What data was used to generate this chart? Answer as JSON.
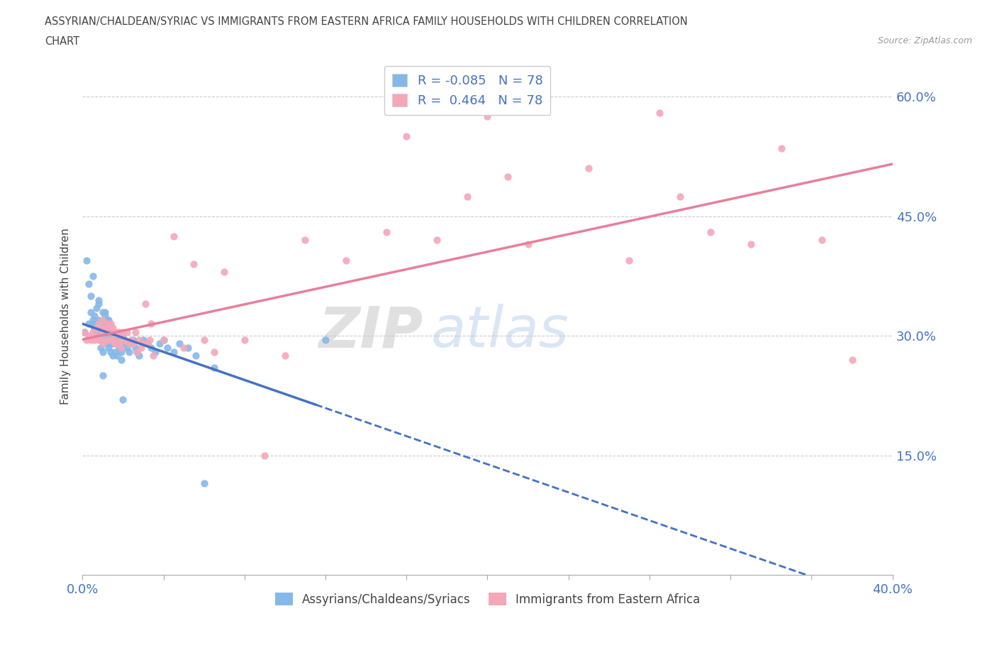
{
  "title_line1": "ASSYRIAN/CHALDEAN/SYRIAC VS IMMIGRANTS FROM EASTERN AFRICA FAMILY HOUSEHOLDS WITH CHILDREN CORRELATION",
  "title_line2": "CHART",
  "source": "Source: ZipAtlas.com",
  "ylabel": "Family Households with Children",
  "x_min": 0.0,
  "x_max": 0.4,
  "y_min": 0.0,
  "y_max": 0.65,
  "x_ticks": [
    0.0,
    0.04,
    0.08,
    0.12,
    0.16,
    0.2,
    0.24,
    0.28,
    0.32,
    0.36,
    0.4
  ],
  "y_ticks": [
    0.0,
    0.15,
    0.3,
    0.45,
    0.6
  ],
  "y_tick_labels": [
    "",
    "15.0%",
    "30.0%",
    "45.0%",
    "60.0%"
  ],
  "R_blue": -0.085,
  "N_blue": 78,
  "R_pink": 0.464,
  "N_pink": 78,
  "color_blue": "#85b8e8",
  "color_pink": "#f4a7b9",
  "tick_label_color": "#4472c4",
  "watermark": "ZIPatlas",
  "legend_label_blue": "Assyrians/Chaldeans/Syriacs",
  "legend_label_pink": "Immigrants from Eastern Africa",
  "blue_scatter_x": [
    0.001,
    0.002,
    0.003,
    0.004,
    0.004,
    0.005,
    0.005,
    0.006,
    0.006,
    0.007,
    0.007,
    0.007,
    0.008,
    0.008,
    0.008,
    0.009,
    0.009,
    0.009,
    0.01,
    0.01,
    0.01,
    0.01,
    0.011,
    0.011,
    0.011,
    0.012,
    0.012,
    0.012,
    0.013,
    0.013,
    0.013,
    0.014,
    0.014,
    0.014,
    0.015,
    0.015,
    0.015,
    0.016,
    0.016,
    0.017,
    0.017,
    0.018,
    0.018,
    0.019,
    0.019,
    0.02,
    0.02,
    0.021,
    0.022,
    0.023,
    0.024,
    0.025,
    0.026,
    0.027,
    0.028,
    0.03,
    0.032,
    0.034,
    0.036,
    0.038,
    0.04,
    0.042,
    0.045,
    0.048,
    0.052,
    0.056,
    0.06,
    0.065,
    0.005,
    0.008,
    0.011,
    0.013,
    0.003,
    0.006,
    0.01,
    0.015,
    0.02,
    0.12
  ],
  "blue_scatter_y": [
    0.305,
    0.395,
    0.365,
    0.35,
    0.33,
    0.32,
    0.315,
    0.31,
    0.325,
    0.335,
    0.31,
    0.305,
    0.3,
    0.32,
    0.34,
    0.295,
    0.285,
    0.31,
    0.28,
    0.3,
    0.315,
    0.33,
    0.295,
    0.31,
    0.325,
    0.29,
    0.305,
    0.32,
    0.285,
    0.3,
    0.315,
    0.28,
    0.295,
    0.31,
    0.275,
    0.29,
    0.305,
    0.28,
    0.295,
    0.275,
    0.29,
    0.285,
    0.295,
    0.28,
    0.27,
    0.285,
    0.3,
    0.29,
    0.285,
    0.28,
    0.29,
    0.295,
    0.285,
    0.28,
    0.275,
    0.295,
    0.29,
    0.285,
    0.28,
    0.29,
    0.295,
    0.285,
    0.28,
    0.29,
    0.285,
    0.275,
    0.115,
    0.26,
    0.375,
    0.345,
    0.33,
    0.32,
    0.315,
    0.31,
    0.25,
    0.295,
    0.22,
    0.295
  ],
  "pink_scatter_x": [
    0.001,
    0.002,
    0.003,
    0.004,
    0.005,
    0.006,
    0.007,
    0.007,
    0.008,
    0.008,
    0.009,
    0.009,
    0.01,
    0.01,
    0.01,
    0.011,
    0.011,
    0.012,
    0.012,
    0.013,
    0.013,
    0.014,
    0.014,
    0.015,
    0.015,
    0.016,
    0.016,
    0.017,
    0.017,
    0.018,
    0.018,
    0.019,
    0.019,
    0.02,
    0.02,
    0.021,
    0.022,
    0.023,
    0.024,
    0.025,
    0.026,
    0.027,
    0.028,
    0.029,
    0.03,
    0.031,
    0.032,
    0.033,
    0.034,
    0.035,
    0.04,
    0.045,
    0.05,
    0.055,
    0.06,
    0.065,
    0.07,
    0.08,
    0.09,
    0.1,
    0.11,
    0.13,
    0.15,
    0.16,
    0.175,
    0.19,
    0.2,
    0.21,
    0.22,
    0.25,
    0.27,
    0.285,
    0.295,
    0.31,
    0.33,
    0.345,
    0.365,
    0.38
  ],
  "pink_scatter_y": [
    0.305,
    0.295,
    0.3,
    0.295,
    0.305,
    0.295,
    0.3,
    0.31,
    0.295,
    0.315,
    0.295,
    0.31,
    0.29,
    0.305,
    0.32,
    0.295,
    0.31,
    0.295,
    0.315,
    0.295,
    0.31,
    0.295,
    0.315,
    0.295,
    0.31,
    0.29,
    0.305,
    0.29,
    0.305,
    0.295,
    0.305,
    0.285,
    0.3,
    0.295,
    0.305,
    0.295,
    0.305,
    0.29,
    0.295,
    0.29,
    0.305,
    0.28,
    0.295,
    0.285,
    0.29,
    0.34,
    0.29,
    0.295,
    0.315,
    0.275,
    0.295,
    0.425,
    0.285,
    0.39,
    0.295,
    0.28,
    0.38,
    0.295,
    0.15,
    0.275,
    0.42,
    0.395,
    0.43,
    0.55,
    0.42,
    0.475,
    0.575,
    0.5,
    0.415,
    0.51,
    0.395,
    0.58,
    0.475,
    0.43,
    0.415,
    0.535,
    0.42,
    0.27
  ]
}
